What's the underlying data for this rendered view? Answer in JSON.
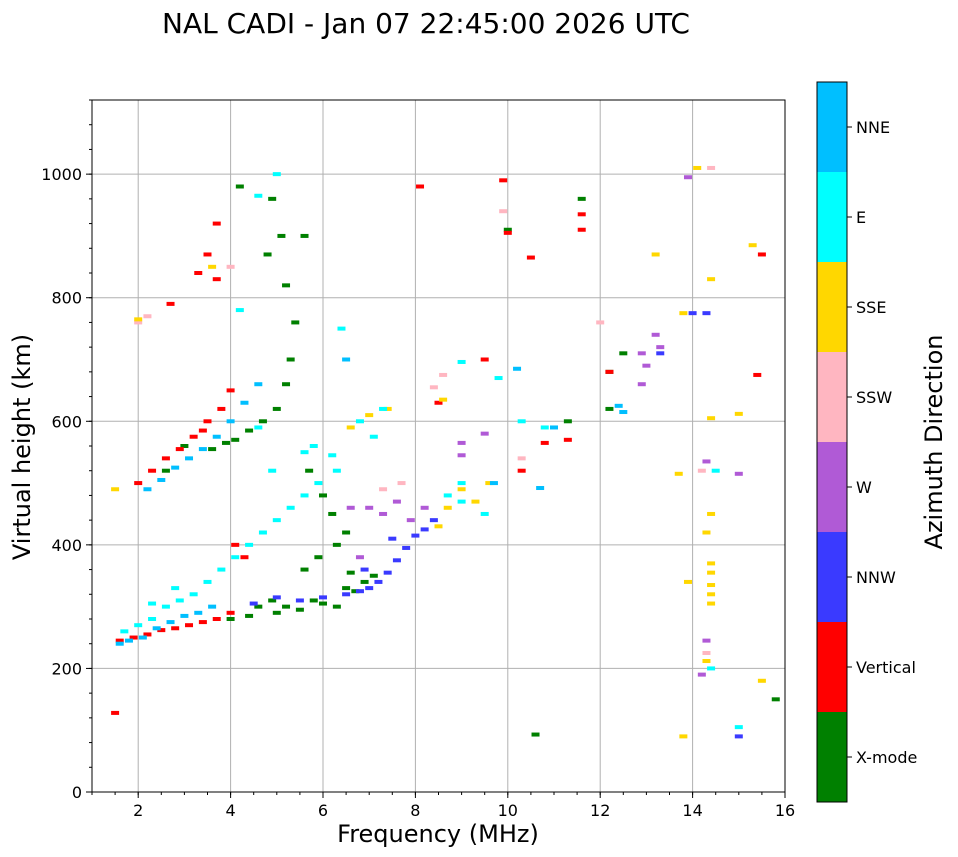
{
  "chart_data": {
    "type": "scatter",
    "title": "NAL CADI - Jan 07 22:45:00 2026 UTC",
    "xlabel": "Frequency (MHz)",
    "ylabel": "Virtual height (km)",
    "xlim": [
      1,
      16
    ],
    "ylim": [
      0,
      1120
    ],
    "xticks": [
      2,
      4,
      6,
      8,
      10,
      12,
      14,
      16
    ],
    "yticks": [
      0,
      200,
      400,
      600,
      800,
      1000
    ],
    "grid": true,
    "colorbar": {
      "title": "Azimuth Direction",
      "categories": [
        {
          "name": "X-mode",
          "color": "#008000"
        },
        {
          "name": "Vertical",
          "color": "#ff0000"
        },
        {
          "name": "NNW",
          "color": "#3a3aff"
        },
        {
          "name": "W",
          "color": "#b05ad6"
        },
        {
          "name": "SSW",
          "color": "#ffb6c1"
        },
        {
          "name": "SSE",
          "color": "#ffd700"
        },
        {
          "name": "E",
          "color": "#00ffff"
        },
        {
          "name": "NNE",
          "color": "#00bfff"
        }
      ]
    },
    "series": [
      {
        "name": "X-mode",
        "points": [
          [
            4.6,
            300
          ],
          [
            4.9,
            310
          ],
          [
            5.2,
            300
          ],
          [
            5.5,
            295
          ],
          [
            5.8,
            310
          ],
          [
            6.0,
            305
          ],
          [
            6.3,
            300
          ],
          [
            6.5,
            330
          ],
          [
            6.7,
            325
          ],
          [
            6.9,
            340
          ],
          [
            5.0,
            290
          ],
          [
            4.4,
            285
          ],
          [
            4.0,
            280
          ],
          [
            6.6,
            355
          ],
          [
            7.1,
            350
          ],
          [
            3.6,
            555
          ],
          [
            3.9,
            565
          ],
          [
            4.1,
            570
          ],
          [
            4.4,
            585
          ],
          [
            4.7,
            600
          ],
          [
            5.0,
            620
          ],
          [
            5.2,
            660
          ],
          [
            5.3,
            700
          ],
          [
            5.4,
            760
          ],
          [
            5.2,
            820
          ],
          [
            5.6,
            900
          ],
          [
            4.8,
            870
          ],
          [
            5.7,
            520
          ],
          [
            6.0,
            480
          ],
          [
            6.2,
            450
          ],
          [
            6.5,
            420
          ],
          [
            6.3,
            400
          ],
          [
            5.9,
            380
          ],
          [
            5.6,
            360
          ],
          [
            11.6,
            960
          ],
          [
            10.0,
            910
          ],
          [
            11.3,
            600
          ],
          [
            12.2,
            620
          ],
          [
            12.5,
            710
          ],
          [
            12.2,
            680
          ],
          [
            10.6,
            93
          ],
          [
            15.8,
            150
          ],
          [
            4.2,
            980
          ],
          [
            4.9,
            960
          ],
          [
            5.1,
            900
          ],
          [
            3.0,
            560
          ],
          [
            2.6,
            520
          ]
        ]
      },
      {
        "name": "Vertical",
        "points": [
          [
            1.6,
            245
          ],
          [
            1.9,
            250
          ],
          [
            2.2,
            255
          ],
          [
            2.5,
            262
          ],
          [
            2.8,
            265
          ],
          [
            3.1,
            270
          ],
          [
            3.4,
            275
          ],
          [
            3.7,
            280
          ],
          [
            4.0,
            290
          ],
          [
            2.9,
            555
          ],
          [
            2.6,
            540
          ],
          [
            2.3,
            520
          ],
          [
            2.0,
            500
          ],
          [
            3.2,
            575
          ],
          [
            3.4,
            585
          ],
          [
            3.5,
            600
          ],
          [
            3.8,
            620
          ],
          [
            4.0,
            650
          ],
          [
            3.5,
            870
          ],
          [
            3.3,
            840
          ],
          [
            3.7,
            830
          ],
          [
            3.7,
            920
          ],
          [
            2.7,
            790
          ],
          [
            8.1,
            980
          ],
          [
            9.9,
            990
          ],
          [
            10.0,
            905
          ],
          [
            10.5,
            865
          ],
          [
            11.6,
            910
          ],
          [
            11.6,
            935
          ],
          [
            10.3,
            520
          ],
          [
            10.8,
            565
          ],
          [
            11.3,
            570
          ],
          [
            8.5,
            630
          ],
          [
            9.5,
            700
          ],
          [
            12.2,
            680
          ],
          [
            15.5,
            870
          ],
          [
            15.4,
            675
          ],
          [
            1.5,
            128
          ],
          [
            4.1,
            400
          ],
          [
            4.3,
            380
          ]
        ]
      },
      {
        "name": "NNW",
        "points": [
          [
            6.5,
            320
          ],
          [
            6.8,
            325
          ],
          [
            7.0,
            330
          ],
          [
            7.2,
            340
          ],
          [
            7.4,
            355
          ],
          [
            7.6,
            375
          ],
          [
            7.8,
            395
          ],
          [
            8.0,
            415
          ],
          [
            8.2,
            425
          ],
          [
            8.4,
            440
          ],
          [
            7.5,
            410
          ],
          [
            6.9,
            360
          ],
          [
            4.5,
            305
          ],
          [
            5.0,
            315
          ],
          [
            5.5,
            310
          ],
          [
            6.0,
            315
          ],
          [
            14.0,
            775
          ],
          [
            14.3,
            775
          ],
          [
            15.0,
            90
          ],
          [
            13.3,
            710
          ]
        ]
      },
      {
        "name": "W",
        "points": [
          [
            7.0,
            460
          ],
          [
            7.3,
            450
          ],
          [
            7.6,
            470
          ],
          [
            7.9,
            440
          ],
          [
            8.2,
            460
          ],
          [
            9.0,
            565
          ],
          [
            9.0,
            545
          ],
          [
            9.5,
            580
          ],
          [
            13.2,
            740
          ],
          [
            12.9,
            710
          ],
          [
            13.0,
            690
          ],
          [
            12.9,
            660
          ],
          [
            13.3,
            720
          ],
          [
            14.3,
            535
          ],
          [
            14.3,
            245
          ],
          [
            14.2,
            190
          ],
          [
            13.9,
            995
          ],
          [
            15.0,
            515
          ],
          [
            6.6,
            460
          ],
          [
            6.8,
            380
          ]
        ]
      },
      {
        "name": "SSW",
        "points": [
          [
            2.0,
            760
          ],
          [
            2.2,
            770
          ],
          [
            4.0,
            850
          ],
          [
            8.4,
            655
          ],
          [
            8.6,
            675
          ],
          [
            9.9,
            940
          ],
          [
            10.3,
            540
          ],
          [
            14.4,
            1010
          ],
          [
            14.3,
            225
          ],
          [
            7.3,
            490
          ],
          [
            7.7,
            500
          ],
          [
            12.0,
            760
          ],
          [
            14.2,
            520
          ]
        ]
      },
      {
        "name": "SSE",
        "points": [
          [
            1.5,
            490
          ],
          [
            2.0,
            765
          ],
          [
            3.6,
            850
          ],
          [
            6.6,
            590
          ],
          [
            7.0,
            610
          ],
          [
            7.4,
            620
          ],
          [
            8.6,
            635
          ],
          [
            8.7,
            460
          ],
          [
            9.0,
            490
          ],
          [
            9.3,
            470
          ],
          [
            9.6,
            500
          ],
          [
            13.2,
            870
          ],
          [
            13.8,
            775
          ],
          [
            14.1,
            1010
          ],
          [
            14.4,
            830
          ],
          [
            14.4,
            605
          ],
          [
            15.0,
            612
          ],
          [
            15.3,
            885
          ],
          [
            14.4,
            370
          ],
          [
            14.4,
            355
          ],
          [
            14.4,
            335
          ],
          [
            14.4,
            320
          ],
          [
            14.4,
            305
          ],
          [
            14.3,
            420
          ],
          [
            14.4,
            450
          ],
          [
            14.3,
            212
          ],
          [
            15.5,
            180
          ],
          [
            13.8,
            90
          ],
          [
            13.9,
            340
          ],
          [
            13.7,
            515
          ],
          [
            8.5,
            430
          ]
        ]
      },
      {
        "name": "E",
        "points": [
          [
            1.7,
            260
          ],
          [
            2.0,
            270
          ],
          [
            2.3,
            280
          ],
          [
            2.6,
            300
          ],
          [
            2.9,
            310
          ],
          [
            3.2,
            320
          ],
          [
            3.5,
            340
          ],
          [
            3.8,
            360
          ],
          [
            4.1,
            380
          ],
          [
            4.4,
            400
          ],
          [
            4.7,
            420
          ],
          [
            5.0,
            440
          ],
          [
            5.3,
            460
          ],
          [
            5.6,
            480
          ],
          [
            5.9,
            500
          ],
          [
            6.3,
            520
          ],
          [
            8.7,
            480
          ],
          [
            9.0,
            470
          ],
          [
            9.5,
            450
          ],
          [
            9.0,
            696
          ],
          [
            9.0,
            500
          ],
          [
            9.8,
            670
          ],
          [
            10.3,
            600
          ],
          [
            10.8,
            590
          ],
          [
            7.3,
            620
          ],
          [
            7.1,
            575
          ],
          [
            6.8,
            600
          ],
          [
            4.2,
            780
          ],
          [
            4.6,
            965
          ],
          [
            5.0,
            1000
          ],
          [
            4.9,
            520
          ],
          [
            5.6,
            550
          ],
          [
            5.8,
            560
          ],
          [
            6.2,
            545
          ],
          [
            14.4,
            200
          ],
          [
            14.5,
            520
          ],
          [
            15.0,
            105
          ],
          [
            4.6,
            590
          ],
          [
            6.4,
            750
          ],
          [
            2.3,
            305
          ],
          [
            2.8,
            330
          ]
        ]
      },
      {
        "name": "NNE",
        "points": [
          [
            1.6,
            240
          ],
          [
            1.8,
            245
          ],
          [
            2.1,
            250
          ],
          [
            2.4,
            265
          ],
          [
            2.7,
            275
          ],
          [
            3.0,
            285
          ],
          [
            3.3,
            290
          ],
          [
            3.6,
            300
          ],
          [
            2.2,
            490
          ],
          [
            2.5,
            505
          ],
          [
            2.8,
            525
          ],
          [
            3.1,
            540
          ],
          [
            3.4,
            555
          ],
          [
            3.7,
            575
          ],
          [
            4.0,
            600
          ],
          [
            4.3,
            630
          ],
          [
            4.6,
            660
          ],
          [
            10.2,
            685
          ],
          [
            10.7,
            492
          ],
          [
            11.0,
            590
          ],
          [
            6.5,
            700
          ],
          [
            9.7,
            500
          ],
          [
            12.4,
            625
          ],
          [
            12.5,
            615
          ]
        ]
      }
    ]
  }
}
